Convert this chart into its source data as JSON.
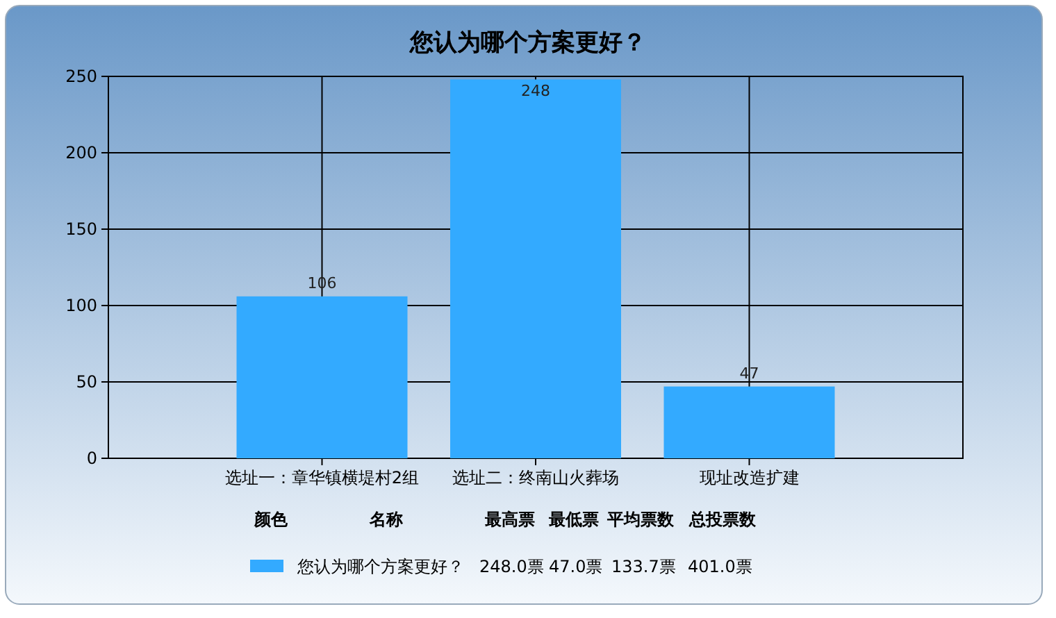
{
  "chart_data": {
    "type": "bar",
    "title": "您认为哪个方案更好？",
    "categories": [
      "选址一：章华镇横堤村2组",
      "选址二：终南山火葬场",
      "现址改造扩建"
    ],
    "series": [
      {
        "name": "您认为哪个方案更好？",
        "color": "#33aaff",
        "values": [
          106,
          248,
          47
        ]
      }
    ],
    "data_labels": true,
    "ylim": [
      0,
      250
    ],
    "yticks": [
      0,
      50,
      100,
      150,
      200,
      250
    ],
    "grid": true,
    "legend": "bottom",
    "annotations": [
      "颜色",
      "名称",
      "最高票",
      "最低票",
      "平均票数",
      "总投票数",
      "248.0票",
      "47.0票",
      "133.7票",
      "401.0票"
    ]
  }
}
